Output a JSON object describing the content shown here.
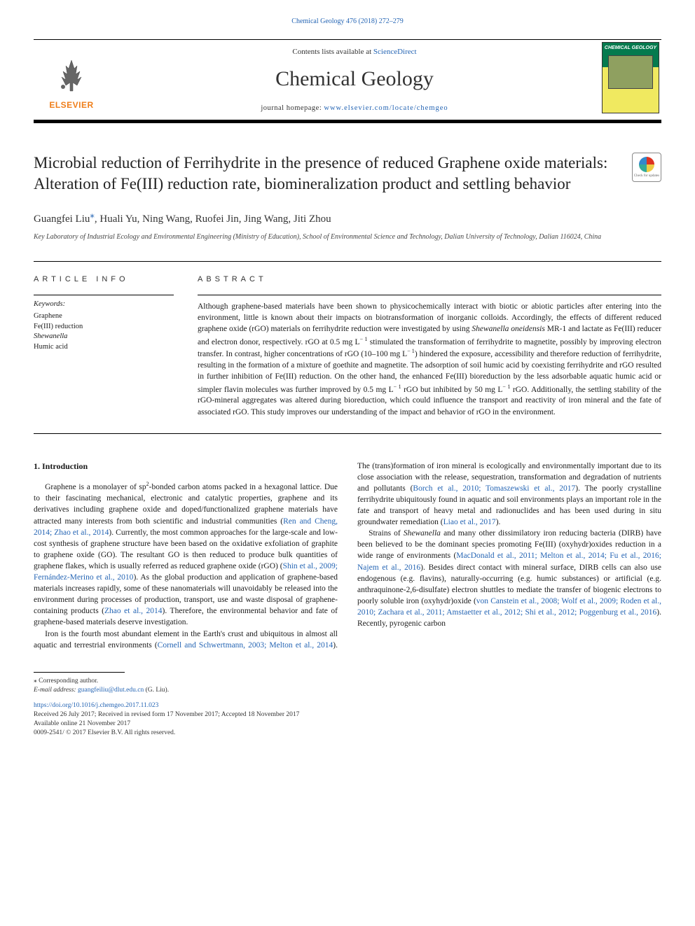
{
  "top_citation": "Chemical Geology 476 (2018) 272–279",
  "masthead": {
    "contents_prefix": "Contents lists available at ",
    "contents_link": "ScienceDirect",
    "journal_name": "Chemical Geology",
    "homepage_prefix": "journal homepage: ",
    "homepage_url": "www.elsevier.com/locate/chemgeo",
    "publisher_name": "ELSEVIER",
    "cover_title": "CHEMICAL GEOLOGY",
    "cover_colors": {
      "top": "#057a4e",
      "bottom": "#f0e960"
    }
  },
  "article": {
    "title": "Microbial reduction of Ferrihydrite in the presence of reduced Graphene oxide materials: Alteration of Fe(III) reduction rate, biomineralization product and settling behavior",
    "authors_html": "Guangfei Liu<span class='corr-mark'>⁎</span>, Huali Yu, Ning Wang, Ruofei Jin, Jing Wang, Jiti Zhou",
    "affiliation": "Key Laboratory of Industrial Ecology and Environmental Engineering (Ministry of Education), School of Environmental Science and Technology, Dalian University of Technology, Dalian 116024, China",
    "crossmark_label": "Check for updates"
  },
  "article_info": {
    "heading": "ARTICLE INFO",
    "keywords_label": "Keywords:",
    "keywords": [
      "Graphene",
      "Fe(III) reduction",
      "Shewanella",
      "Humic acid"
    ]
  },
  "abstract": {
    "heading": "ABSTRACT",
    "text": "Although graphene-based materials have been shown to physicochemically interact with biotic or abiotic particles after entering into the environment, little is known about their impacts on biotransformation of inorganic colloids. Accordingly, the effects of different reduced graphene oxide (rGO) materials on ferrihydrite reduction were investigated by using <i>Shewanella oneidensis</i> MR-1 and lactate as Fe(III) reducer and electron donor, respectively. rGO at 0.5 mg L<span class='sup'>− 1</span> stimulated the transformation of ferrihydrite to magnetite, possibly by improving electron transfer. In contrast, higher concentrations of rGO (10–100 mg L<span class='sup'>− 1</span>) hindered the exposure, accessibility and therefore reduction of ferrihydrite, resulting in the formation of a mixture of goethite and magnetite. The adsorption of soil humic acid by coexisting ferrihydrite and rGO resulted in further inhibition of Fe(III) reduction. On the other hand, the enhanced Fe(III) bioreduction by the less adsorbable aquatic humic acid or simpler flavin molecules was further improved by 0.5 mg L<span class='sup'>− 1</span> rGO but inhibited by 50 mg L<span class='sup'>− 1</span> rGO. Additionally, the settling stability of the rGO-mineral aggregates was altered during bioreduction, which could influence the transport and reactivity of iron mineral and the fate of associated rGO. This study improves our understanding of the impact and behavior of rGO in the environment."
  },
  "body": {
    "section_number": "1.",
    "section_title": "Introduction",
    "p1": "Graphene is a monolayer of sp<span class='sup'>2</span>-bonded carbon atoms packed in a hexagonal lattice. Due to their fascinating mechanical, electronic and catalytic properties, graphene and its derivatives including graphene oxide and doped/functionalized graphene materials have attracted many interests from both scientific and industrial communities (<span class='ref-link'>Ren and Cheng, 2014; Zhao et al., 2014</span>). Currently, the most common approaches for the large-scale and low-cost synthesis of graphene structure have been based on the oxidative exfoliation of graphite to graphene oxide (GO). The resultant GO is then reduced to produce bulk quantities of graphene flakes, which is usually referred as reduced graphene oxide (rGO) (<span class='ref-link'>Shin et al., 2009; Fernández-Merino et al., 2010</span>). As the global production and application of graphene-based materials increases rapidly, some of these nanomaterials will unavoidably be released into the environment during processes of production, transport, use and waste disposal of graphene-containing products (<span class='ref-link'>Zhao et al., 2014</span>). Therefore, the environmental behavior and fate of graphene-based materials deserve investigation.",
    "p2": "Iron is the fourth most abundant element in the Earth's crust and ubiquitous in almost all aquatic and terrestrial environments (<span class='ref-link'>Cornell and Schwertmann, 2003; Melton et al., 2014</span>). The (trans)formation of iron mineral is ecologically and environmentally important due to its close association with the release, sequestration, transformation and degradation of nutrients and pollutants (<span class='ref-link'>Borch et al., 2010; Tomaszewski et al., 2017</span>). The poorly crystalline ferrihydrite ubiquitously found in aquatic and soil environments plays an important role in the fate and transport of heavy metal and radionuclides and has been used during in situ groundwater remediation (<span class='ref-link'>Liao et al., 2017</span>).",
    "p3": "Strains of <i>Shewanella</i> and many other dissimilatory iron reducing bacteria (DIRB) have been believed to be the dominant species promoting Fe(III) (oxyhydr)oxides reduction in a wide range of environments (<span class='ref-link'>MacDonald et al., 2011; Melton et al., 2014; Fu et al., 2016; Najem et al., 2016</span>). Besides direct contact with mineral surface, DIRB cells can also use endogenous (e.g. flavins), naturally-occurring (e.g. humic substances) or artificial (e.g. anthraquinone-2,6-disulfate) electron shuttles to mediate the transfer of biogenic electrons to poorly soluble iron (oxyhydr)oxide (<span class='ref-link'>von Canstein et al., 2008; Wolf et al., 2009; Roden et al., 2010; Zachara et al., 2011; Amstaetter et al., 2012; Shi et al., 2012; Poggenburg et al., 2016</span>). Recently, pyrogenic carbon"
  },
  "footnotes": {
    "corr": "⁎ Corresponding author.",
    "email_label": "E-mail address: ",
    "email": "guangfeiliu@dlut.edu.cn",
    "email_suffix": " (G. Liu)."
  },
  "footer": {
    "doi": "https://doi.org/10.1016/j.chemgeo.2017.11.023",
    "history": "Received 26 July 2017; Received in revised form 17 November 2017; Accepted 18 November 2017",
    "online": "Available online 21 November 2017",
    "copyright": "0009-2541/ © 2017 Elsevier B.V. All rights reserved."
  },
  "colors": {
    "link": "#2565b4",
    "elsevier_orange": "#ef7e1a",
    "text": "#1a1a1a",
    "rule": "#000000"
  },
  "typography": {
    "body_font": "Georgia, 'Times New Roman', serif",
    "title_fontsize": 23,
    "journal_fontsize": 30,
    "abstract_fontsize": 11.5,
    "body_fontsize": 11.5,
    "footnote_fontsize": 9.5
  }
}
